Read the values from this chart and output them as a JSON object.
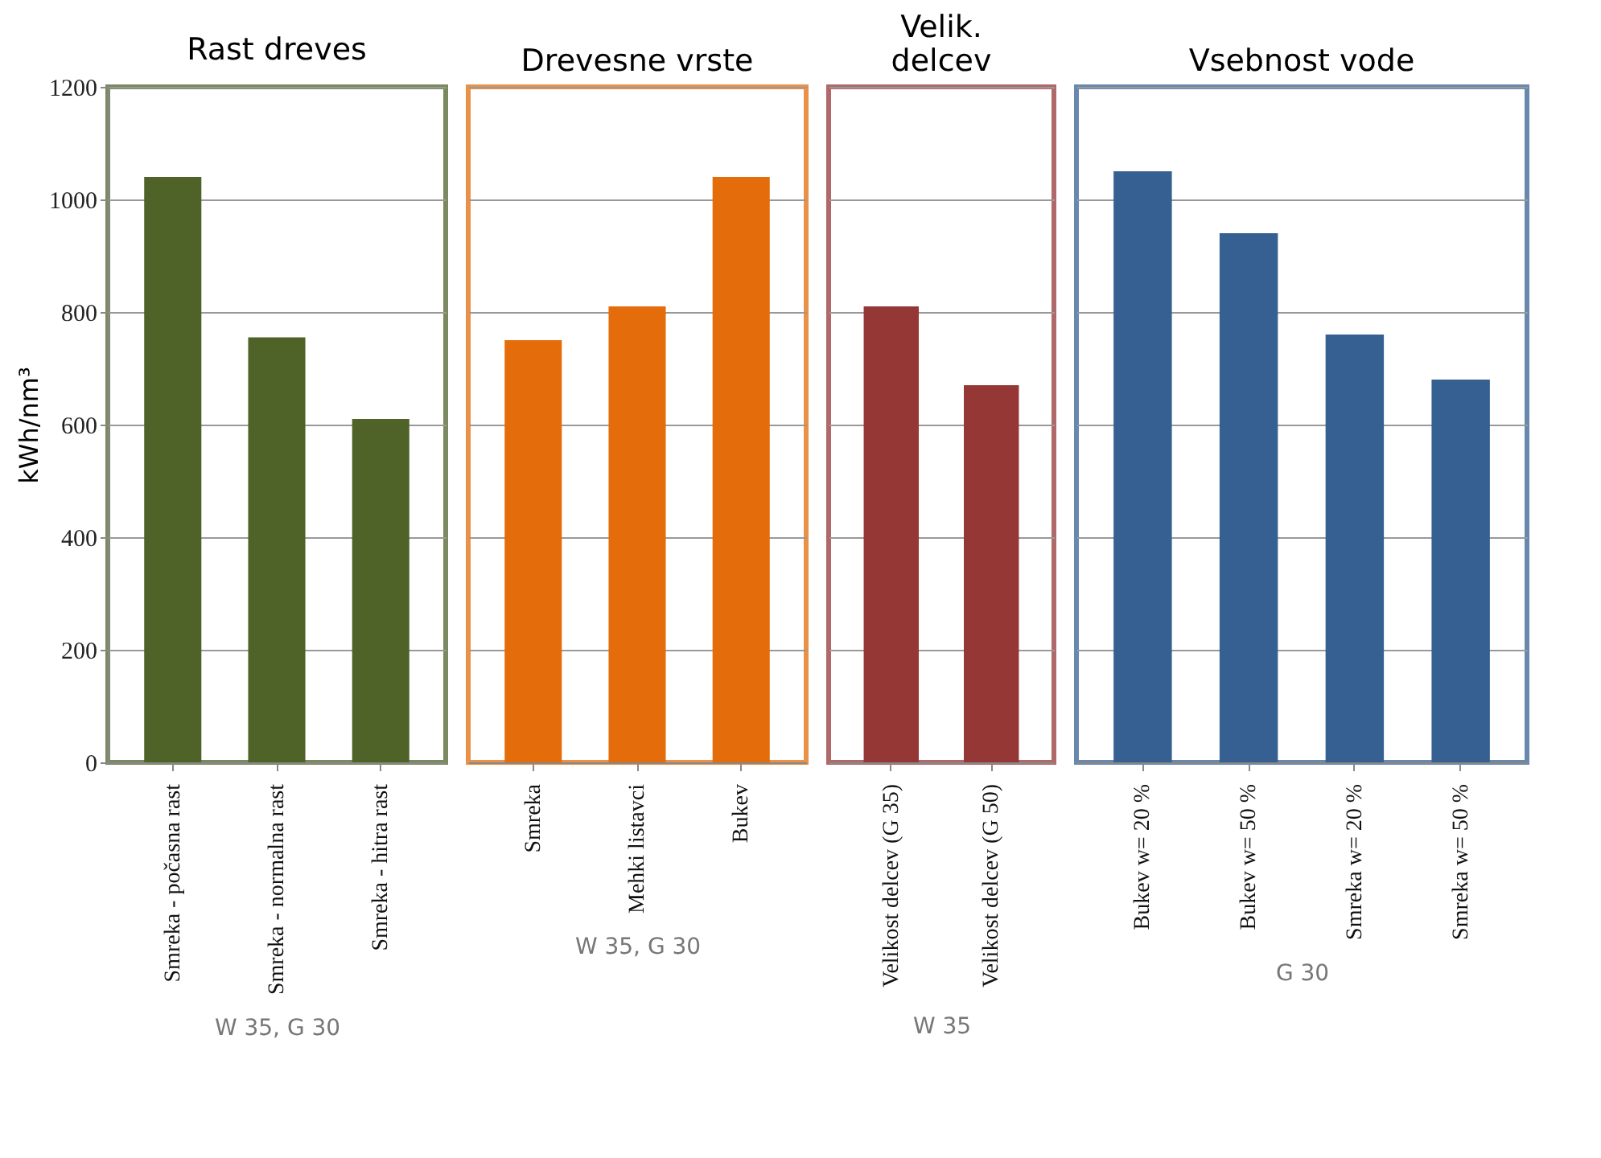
{
  "chart_data": [
    {
      "type": "bar",
      "title": "Rast dreves",
      "ylabel": "kWh/nm³",
      "categories": [
        "Smreka - počasna rast",
        "Smreka - normalna rast",
        "Smreka - hitra rast"
      ],
      "values": [
        1040,
        755,
        610
      ],
      "color": "#4f6228",
      "ylim": [
        0,
        1200
      ],
      "yticks": [
        0,
        200,
        400,
        600,
        800,
        1000,
        1200
      ],
      "grid": "y",
      "annotations": [
        "W 35, G 30"
      ]
    },
    {
      "type": "bar",
      "title": "Drevesne vrste",
      "categories": [
        "Smreka",
        "Mehki listavci",
        "Bukev"
      ],
      "values": [
        750,
        810,
        1040
      ],
      "color": "#e46c0a",
      "ylim": [
        0,
        1200
      ],
      "yticks": [
        0,
        200,
        400,
        600,
        800,
        1000,
        1200
      ],
      "grid": "y",
      "tick_labels": "x",
      "annotations": [
        "W 35, G 30"
      ]
    },
    {
      "type": "bar",
      "title": "Velik. delcev",
      "categories": [
        "Velikost delcev  (G 35)",
        "Velikost delcev  (G 50)"
      ],
      "values": [
        810,
        670
      ],
      "color": "#953735",
      "ylim": [
        0,
        1200
      ],
      "yticks": [
        0,
        200,
        400,
        600,
        800,
        1000,
        1200
      ],
      "grid": "y",
      "tick_labels": "x",
      "annotations": [
        "W 35"
      ]
    },
    {
      "type": "bar",
      "title": "Vsebnost vode",
      "categories": [
        "Bukev w= 20 %",
        "Bukev w= 50 %",
        "Smreka w= 20 %",
        "Smreka w= 50 %"
      ],
      "values": [
        1050,
        940,
        760,
        680
      ],
      "color": "#376092",
      "ylim": [
        0,
        1200
      ],
      "yticks": [
        0,
        200,
        400,
        600,
        800,
        1000,
        1200
      ],
      "grid": "y",
      "tick_labels": "x",
      "annotations": [
        "G 30"
      ]
    }
  ]
}
